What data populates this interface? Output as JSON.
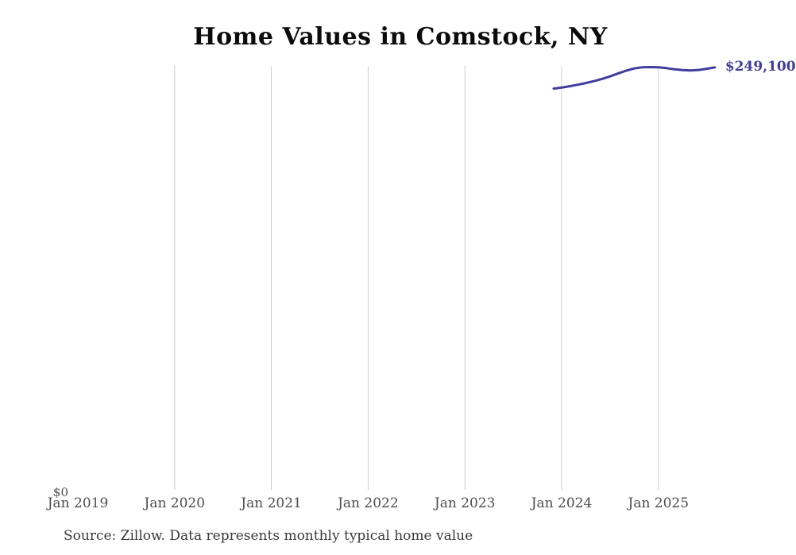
{
  "page": {
    "background": "#ffffff"
  },
  "header": {
    "title": "Home Values in Comstock, NY"
  },
  "footer": {
    "source": "Source: Zillow. Data represents monthly typical home value"
  },
  "chart_data": {
    "type": "line",
    "title": "Home Values in Comstock, NY",
    "xlabel": "",
    "ylabel": "",
    "x_ticks": [
      "Jan 2019",
      "Jan 2020",
      "Jan 2021",
      "Jan 2022",
      "Jan 2023",
      "Jan 2024",
      "Jan 2025"
    ],
    "x_tick_gridline": [
      false,
      true,
      true,
      true,
      true,
      true,
      true
    ],
    "x_range": [
      "Jan 2019",
      "Sep 2025"
    ],
    "ylim": [
      0,
      250000
    ],
    "y_zero_label": "$0",
    "end_label": "$249,100",
    "grid": "vertical-only",
    "legend": "none",
    "line_color": "#3f3d9e",
    "grid_color": "#cccccc",
    "series": [
      {
        "name": "Monthly typical home value",
        "points": [
          {
            "date": "2023-12",
            "value": 236600
          },
          {
            "date": "2024-01",
            "value": 237200
          },
          {
            "date": "2024-02",
            "value": 238000
          },
          {
            "date": "2024-03",
            "value": 238900
          },
          {
            "date": "2024-04",
            "value": 239900
          },
          {
            "date": "2024-05",
            "value": 241000
          },
          {
            "date": "2024-06",
            "value": 242300
          },
          {
            "date": "2024-07",
            "value": 243800
          },
          {
            "date": "2024-08",
            "value": 245500
          },
          {
            "date": "2024-09",
            "value": 247200
          },
          {
            "date": "2024-10",
            "value": 248500
          },
          {
            "date": "2024-11",
            "value": 249200
          },
          {
            "date": "2024-12",
            "value": 249300
          },
          {
            "date": "2025-01",
            "value": 249200
          },
          {
            "date": "2025-02",
            "value": 248700
          },
          {
            "date": "2025-03",
            "value": 248000
          },
          {
            "date": "2025-04",
            "value": 247500
          },
          {
            "date": "2025-05",
            "value": 247300
          },
          {
            "date": "2025-06",
            "value": 247600
          },
          {
            "date": "2025-07",
            "value": 248300
          },
          {
            "date": "2025-08",
            "value": 249100
          }
        ]
      }
    ]
  }
}
